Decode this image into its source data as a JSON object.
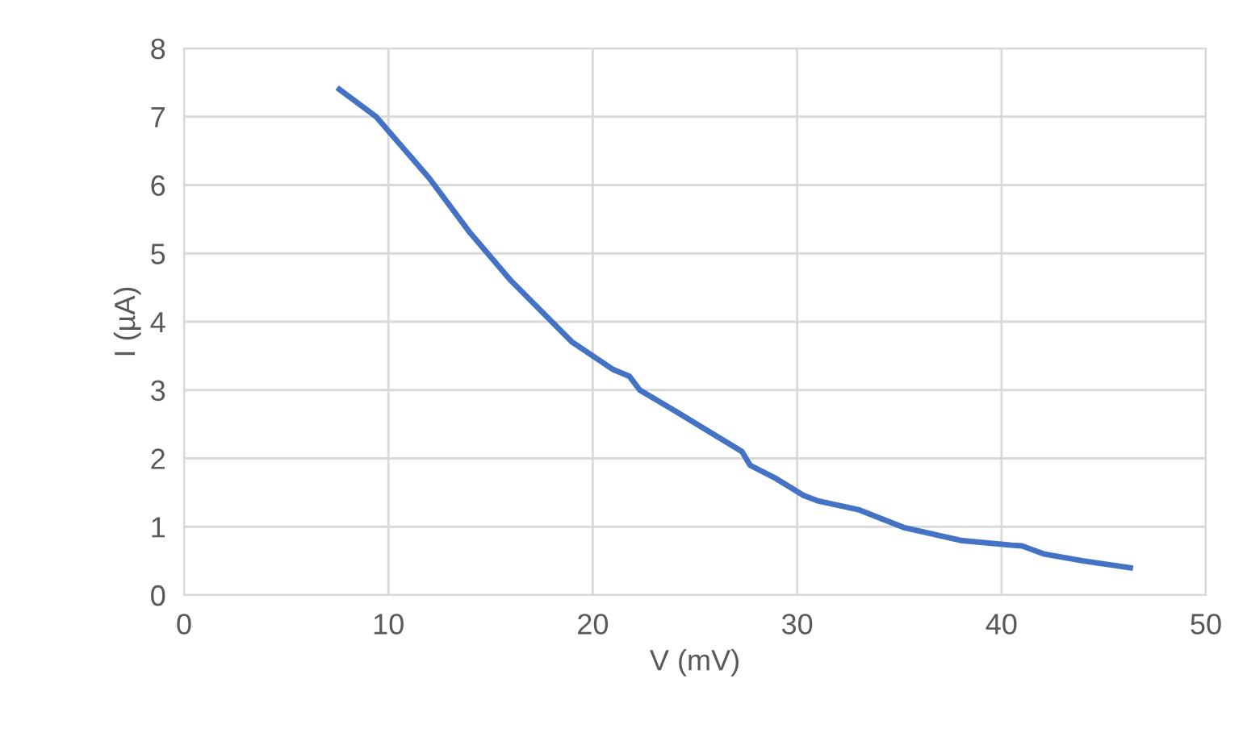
{
  "chart_data": {
    "type": "line",
    "xlabel": "V (mV)",
    "ylabel": "I (µA)",
    "xlim": [
      0,
      50
    ],
    "xticks": [
      0,
      10,
      20,
      30,
      40,
      50
    ],
    "ylim": [
      0,
      8
    ],
    "yticks": [
      0,
      1,
      2,
      3,
      4,
      5,
      6,
      7,
      8
    ],
    "grid": true,
    "legend": false,
    "marker": "none",
    "line_style": "solid",
    "series": [
      {
        "color": "#4472c4",
        "x": [
          7.6,
          9.4,
          12.0,
          14.0,
          16.0,
          19.0,
          21.0,
          21.8,
          22.3,
          24.0,
          27.3,
          27.7,
          29.0,
          30.3,
          31.0,
          33.0,
          35.2,
          38.0,
          40.5,
          41.0,
          42.1,
          44.0,
          46.3
        ],
        "values": [
          7.4,
          7.0,
          6.1,
          5.3,
          4.6,
          3.7,
          3.3,
          3.2,
          3.0,
          2.7,
          2.1,
          1.9,
          1.7,
          1.46,
          1.38,
          1.25,
          0.99,
          0.8,
          0.73,
          0.72,
          0.6,
          0.5,
          0.4
        ]
      }
    ]
  }
}
